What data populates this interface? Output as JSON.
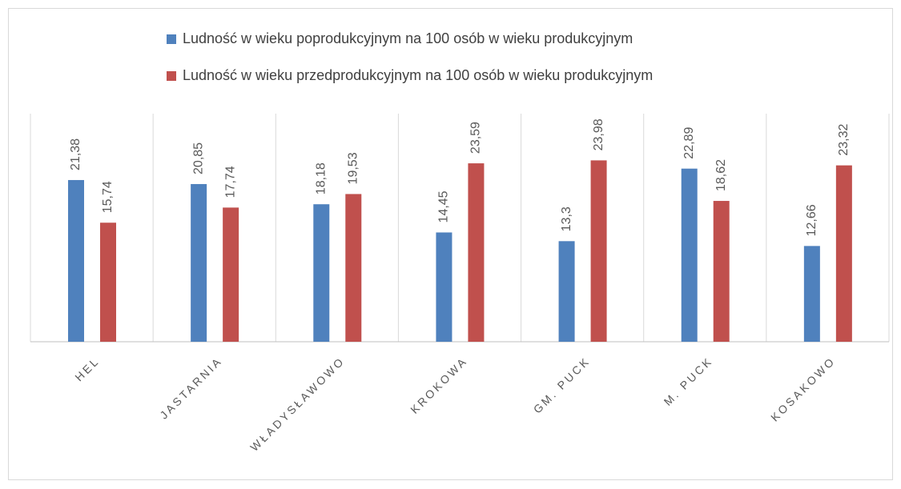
{
  "chart_data": {
    "type": "bar",
    "categories": [
      "HEL",
      "JASTARNIA",
      "WŁADYSŁAWOWO",
      "KROKOWA",
      "GM. PUCK",
      "M. PUCK",
      "KOSAKOWO"
    ],
    "series": [
      {
        "name": "Ludność w wieku poprodukcyjnym na 100 osób w wieku produkcyjnym",
        "color": "#4f81bd",
        "values": [
          21.38,
          20.85,
          18.18,
          14.45,
          13.3,
          22.89,
          12.66
        ],
        "value_labels": [
          "21,38",
          "20,85",
          "18,18",
          "14,45",
          "13,3",
          "22,89",
          "12,66"
        ]
      },
      {
        "name": "Ludność w wieku przedprodukcyjnym na 100 osób w wieku produkcyjnym",
        "color": "#c0504d",
        "values": [
          15.74,
          17.74,
          19.53,
          23.59,
          23.98,
          18.62,
          23.32
        ],
        "value_labels": [
          "15,74",
          "17,74",
          "19,53",
          "23,59",
          "23,98",
          "18,62",
          "23,32"
        ]
      }
    ]
  }
}
